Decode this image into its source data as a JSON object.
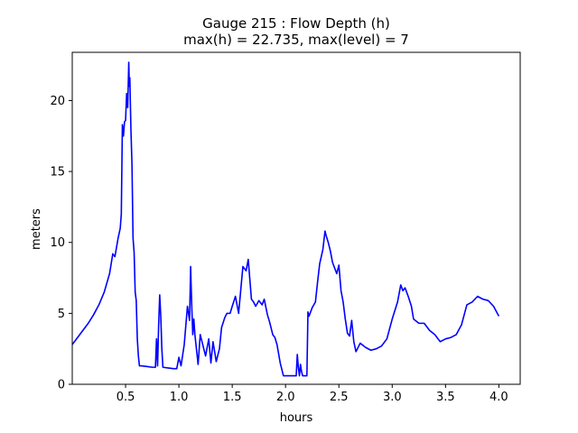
{
  "chart_data": {
    "type": "line",
    "title_line1": "Gauge 215 : Flow Depth (h)",
    "title_line2": "max(h) =  22.735,    max(level) = 7",
    "xlabel": "hours",
    "ylabel": "meters",
    "xlim": [
      0.0,
      4.2
    ],
    "ylim": [
      0,
      23.4
    ],
    "xticks": [
      {
        "value": 0.5,
        "label": "0.5"
      },
      {
        "value": 1.0,
        "label": "1.0"
      },
      {
        "value": 1.5,
        "label": "1.5"
      },
      {
        "value": 2.0,
        "label": "2.0"
      },
      {
        "value": 2.5,
        "label": "2.5"
      },
      {
        "value": 3.0,
        "label": "3.0"
      },
      {
        "value": 3.5,
        "label": "3.5"
      },
      {
        "value": 4.0,
        "label": "4.0"
      }
    ],
    "yticks": [
      {
        "value": 0,
        "label": "0"
      },
      {
        "value": 5,
        "label": "5"
      },
      {
        "value": 10,
        "label": "10"
      },
      {
        "value": 15,
        "label": "15"
      },
      {
        "value": 20,
        "label": "20"
      }
    ],
    "grid": false,
    "legend": "none",
    "series": [
      {
        "color": "#0000ff",
        "x": [
          0.0,
          0.05,
          0.1,
          0.15,
          0.2,
          0.25,
          0.3,
          0.35,
          0.38,
          0.4,
          0.43,
          0.45,
          0.46,
          0.47,
          0.48,
          0.49,
          0.5,
          0.51,
          0.52,
          0.53,
          0.535,
          0.54,
          0.55,
          0.56,
          0.57,
          0.58,
          0.59,
          0.6,
          0.61,
          0.62,
          0.63,
          0.65,
          0.7,
          0.75,
          0.78,
          0.79,
          0.8,
          0.81,
          0.82,
          0.83,
          0.84,
          0.85,
          0.9,
          0.95,
          0.98,
          1.0,
          1.02,
          1.05,
          1.08,
          1.1,
          1.11,
          1.12,
          1.13,
          1.14,
          1.15,
          1.18,
          1.2,
          1.25,
          1.28,
          1.3,
          1.32,
          1.35,
          1.38,
          1.4,
          1.43,
          1.45,
          1.48,
          1.5,
          1.53,
          1.56,
          1.6,
          1.63,
          1.65,
          1.68,
          1.7,
          1.72,
          1.75,
          1.78,
          1.8,
          1.83,
          1.85,
          1.88,
          1.9,
          1.92,
          1.95,
          1.98,
          2.0,
          2.05,
          2.1,
          2.11,
          2.12,
          2.13,
          2.14,
          2.15,
          2.16,
          2.2,
          2.21,
          2.22,
          2.25,
          2.28,
          2.3,
          2.32,
          2.35,
          2.37,
          2.38,
          2.4,
          2.42,
          2.44,
          2.46,
          2.48,
          2.5,
          2.52,
          2.54,
          2.56,
          2.58,
          2.6,
          2.62,
          2.64,
          2.66,
          2.7,
          2.75,
          2.8,
          2.85,
          2.9,
          2.95,
          3.0,
          3.05,
          3.08,
          3.1,
          3.12,
          3.15,
          3.18,
          3.2,
          3.25,
          3.3,
          3.35,
          3.4,
          3.45,
          3.5,
          3.55,
          3.6,
          3.65,
          3.7,
          3.75,
          3.8,
          3.85,
          3.9,
          3.95,
          4.0
        ],
        "y": [
          2.8,
          3.3,
          3.8,
          4.3,
          4.9,
          5.6,
          6.5,
          7.8,
          9.2,
          9.0,
          10.3,
          11.0,
          12.0,
          18.3,
          17.5,
          18.5,
          18.6,
          20.5,
          19.5,
          22.7,
          21.0,
          21.6,
          18.0,
          15.5,
          10.3,
          9.3,
          6.5,
          5.9,
          3.2,
          2.0,
          1.3,
          1.3,
          1.25,
          1.2,
          1.2,
          3.2,
          1.3,
          4.2,
          6.3,
          4.8,
          2.5,
          1.2,
          1.15,
          1.1,
          1.1,
          1.9,
          1.3,
          2.8,
          5.5,
          4.5,
          8.3,
          5.6,
          3.5,
          4.6,
          3.5,
          1.4,
          3.5,
          2.0,
          3.2,
          1.5,
          3.0,
          1.6,
          2.5,
          4.0,
          4.7,
          5.0,
          5.0,
          5.5,
          6.2,
          5.0,
          8.3,
          8.0,
          8.8,
          6.0,
          5.8,
          5.5,
          5.9,
          5.6,
          6.0,
          4.9,
          4.4,
          3.5,
          3.3,
          2.8,
          1.5,
          0.6,
          0.6,
          0.6,
          0.6,
          2.1,
          1.2,
          0.6,
          1.4,
          0.9,
          0.6,
          0.6,
          5.1,
          4.8,
          5.4,
          5.8,
          7.2,
          8.5,
          9.5,
          10.8,
          10.5,
          10.0,
          9.4,
          8.6,
          8.2,
          7.8,
          8.4,
          6.6,
          5.8,
          4.6,
          3.6,
          3.4,
          4.5,
          3.0,
          2.3,
          2.9,
          2.6,
          2.4,
          2.5,
          2.7,
          3.2,
          4.6,
          5.8,
          7.0,
          6.6,
          6.8,
          6.2,
          5.5,
          4.6,
          4.3,
          4.3,
          3.8,
          3.5,
          3.0,
          3.2,
          3.3,
          3.5,
          4.2,
          5.6,
          5.8,
          6.2,
          6.0,
          5.9,
          5.5,
          4.8
        ]
      }
    ]
  }
}
